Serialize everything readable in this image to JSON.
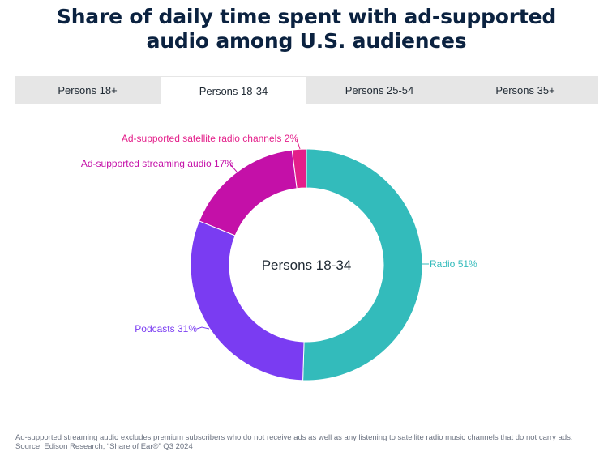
{
  "title_lines": [
    "Share of daily time spent with ad-supported",
    "audio among U.S. audiences"
  ],
  "tabs": [
    {
      "label": "Persons 18+",
      "active": false
    },
    {
      "label": "Persons 18-34",
      "active": true
    },
    {
      "label": "Persons 25-54",
      "active": false
    },
    {
      "label": "Persons 35+",
      "active": false
    }
  ],
  "chart_data": {
    "type": "pie",
    "donut": true,
    "center_label": "Persons 18-34",
    "start_angle_deg": 0,
    "direction": "clockwise",
    "slices": [
      {
        "label": "Radio",
        "value": 51,
        "display": "Radio 51%",
        "color": "#33bbbb"
      },
      {
        "label": "Podcasts",
        "value": 31,
        "display": "Podcasts 31%",
        "color": "#7a3cf2"
      },
      {
        "label": "Ad-supported streaming audio",
        "value": 17,
        "display": "Ad-supported streaming audio 17%",
        "color": "#c410a8"
      },
      {
        "label": "Ad-supported satellite radio channels",
        "value": 2,
        "display": "Ad-supported satellite radio channels 2%",
        "color": "#e41f8a"
      }
    ]
  },
  "footnote": {
    "line1": "Ad-supported streaming audio excludes premium subscribers who do not receive ads as well as any listening to satellite radio music channels that do not carry ads.",
    "line2": "Source: Edison Research, “Share of Ear®” Q3 2024"
  }
}
